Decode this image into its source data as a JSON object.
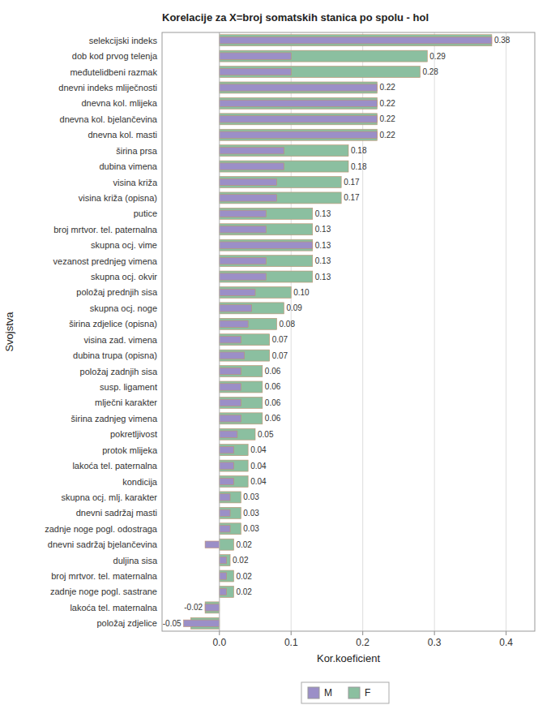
{
  "chart_data": {
    "type": "bar",
    "orientation": "horizontal",
    "title": "Korelacije za X=broj somatskih stanica po spolu - hol",
    "xlabel": "Kor.koeficient",
    "ylabel": "Svojstva",
    "categories": [
      "selekcijski indeks",
      "dob kod prvog telenja",
      "međutelidbeni razmak",
      "dnevni indeks mliječnosti",
      "dnevna kol. mlijeka",
      "dnevna kol. bjelančevina",
      "dnevna kol. masti",
      "širina prsa",
      "dubina vimena",
      "visina križa",
      "visina križa (opisna)",
      "putice",
      "broj mrtvor. tel. paternalna",
      "skupna ocj. vime",
      "vezanost prednjeg vimena",
      "skupna ocj. okvir",
      "položaj prednjih sisa",
      "skupna ocj. noge",
      "širina zdjelice (opisna)",
      "visina zad. vimena",
      "dubina trupa (opisna)",
      "položaj zadnjih sisa",
      "susp. ligament",
      "mlječni karakter",
      "širina zadnjeg vimena",
      "pokretljivost",
      "protok mlijeka",
      "lakoća tel. paternalna",
      "kondicija",
      "skupna ocj. mlj. karakter",
      "dnevni sadržaj masti",
      "zadnje noge pogl. odostraga",
      "dnevni sadržaj bjelančevina",
      "duljina sisa",
      "broj mrtvor. tel. maternalna",
      "zadnje noge pogl. sastrane",
      "lakoća tel. maternalna",
      "položaj zdjelice"
    ],
    "series": [
      {
        "name": "M",
        "color": "#9b8fc7",
        "values": [
          0.38,
          0.1,
          0.1,
          0.22,
          0.22,
          0.22,
          0.22,
          0.09,
          0.09,
          0.08,
          0.08,
          0.065,
          0.065,
          0.13,
          0.065,
          0.065,
          0.05,
          0.045,
          0.04,
          0.03,
          0.035,
          0.03,
          0.03,
          0.03,
          0.03,
          0.025,
          0.02,
          0.02,
          0.02,
          0.015,
          0.015,
          0.015,
          -0.02,
          0.01,
          0.01,
          0.01,
          -0.02,
          -0.05
        ]
      },
      {
        "name": "F",
        "color": "#8bbfa0",
        "values": [
          0.38,
          0.29,
          0.28,
          0.22,
          0.22,
          0.22,
          0.22,
          0.18,
          0.18,
          0.17,
          0.17,
          0.13,
          0.13,
          0.13,
          0.13,
          0.13,
          0.1,
          0.09,
          0.08,
          0.07,
          0.07,
          0.06,
          0.06,
          0.06,
          0.06,
          0.05,
          0.04,
          0.04,
          0.04,
          0.03,
          0.03,
          0.03,
          0.02,
          0.015,
          0.02,
          0.02,
          -0.02,
          -0.04
        ]
      }
    ],
    "label_values": [
      0.38,
      0.29,
      0.28,
      0.22,
      0.22,
      0.22,
      0.22,
      0.18,
      0.18,
      0.17,
      0.17,
      0.13,
      0.13,
      0.13,
      0.13,
      0.13,
      0.1,
      0.09,
      0.08,
      0.07,
      0.07,
      0.06,
      0.06,
      0.06,
      0.06,
      0.05,
      0.04,
      0.04,
      0.04,
      0.03,
      0.03,
      0.03,
      0.02,
      0.02,
      0.02,
      0.02,
      -0.02,
      -0.05
    ],
    "value_labels": [
      "0.38",
      "0.29",
      "0.28",
      "0.22",
      "0.22",
      "0.22",
      "0.22",
      "0.18",
      "0.18",
      "0.17",
      "0.17",
      "0.13",
      "0.13",
      "0.13",
      "0.13",
      "0.13",
      "0.10",
      "0.09",
      "0.08",
      "0.07",
      "0.07",
      "0.06",
      "0.06",
      "0.06",
      "0.06",
      "0.05",
      "0.04",
      "0.04",
      "0.04",
      "0.03",
      "0.03",
      "0.03",
      "0.02",
      "0.02",
      "0.02",
      "0.02",
      "-0.02",
      "-0.05"
    ],
    "data_labels": true,
    "xlim": [
      -0.08,
      0.44
    ],
    "xticks": [
      {
        "value": 0,
        "label": "0.0"
      },
      0.1,
      0.2,
      0.3,
      0.4
    ],
    "grid": true,
    "legend": "bottom"
  }
}
